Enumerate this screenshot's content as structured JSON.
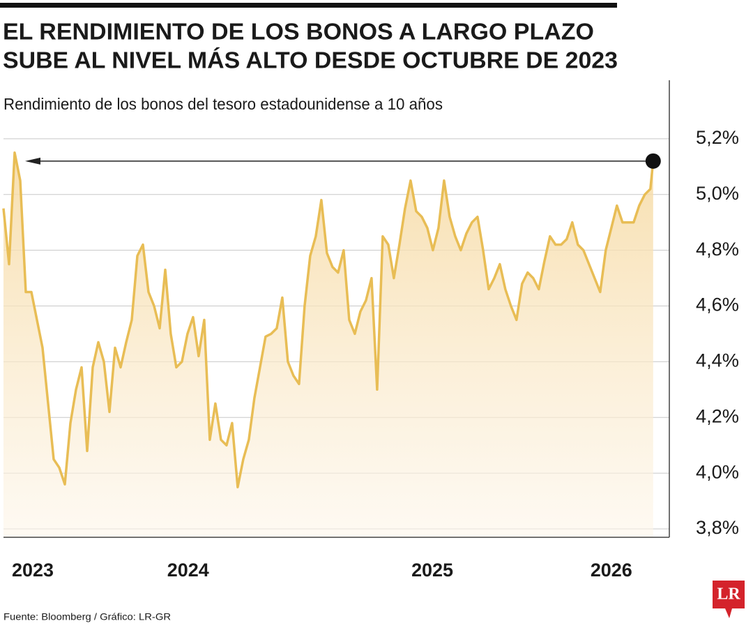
{
  "chart_data": {
    "type": "line",
    "title": [
      "EL RENDIMIENTO DE LOS BONOS A LARGO PLAZO",
      "SUBE AL NIVEL MÁS ALTO DESDE OCTUBRE DE 2023"
    ],
    "subtitle": "Rendimiento de los bonos del tesoro estadounidense a 10 años",
    "source": "Fuente: Bloomberg / Gráfico: LR-GR",
    "logo": "LR",
    "x": [
      0,
      1,
      2,
      3,
      4,
      5,
      6,
      7,
      8,
      9,
      10,
      11,
      12,
      13,
      14,
      15,
      16,
      17,
      18,
      19,
      20,
      21,
      22,
      23,
      24,
      25,
      26,
      27,
      28,
      29,
      30,
      31,
      32,
      33,
      34,
      35,
      36,
      37,
      38,
      39,
      40,
      41,
      42,
      43,
      44,
      45,
      46,
      47,
      48,
      49,
      50,
      51,
      52,
      53,
      54,
      55,
      56,
      57,
      58,
      59,
      60,
      61,
      62,
      63,
      64,
      65,
      66,
      67,
      68,
      69,
      70,
      71,
      72,
      73,
      74,
      75,
      76,
      77,
      78,
      79,
      80,
      81,
      82,
      83,
      84,
      85,
      86,
      87,
      88,
      89,
      90,
      91,
      92,
      93,
      94,
      95,
      96,
      97,
      98,
      99,
      100,
      101,
      102,
      103,
      104,
      105,
      106,
      107,
      108,
      109,
      110,
      111,
      112,
      113,
      114,
      115,
      116,
      116.5
    ],
    "series": [
      {
        "name": "Rendimiento",
        "color": "#e8bd55",
        "values": [
          4.95,
          4.75,
          5.15,
          5.05,
          4.65,
          4.65,
          4.55,
          4.45,
          4.25,
          4.05,
          4.02,
          3.96,
          4.18,
          4.3,
          4.38,
          4.08,
          4.38,
          4.47,
          4.4,
          4.22,
          4.45,
          4.38,
          4.47,
          4.55,
          4.78,
          4.82,
          4.65,
          4.6,
          4.52,
          4.73,
          4.5,
          4.38,
          4.4,
          4.5,
          4.56,
          4.42,
          4.55,
          4.12,
          4.25,
          4.12,
          4.1,
          4.18,
          3.95,
          4.05,
          4.12,
          4.27,
          4.38,
          4.49,
          4.5,
          4.52,
          4.63,
          4.4,
          4.35,
          4.32,
          4.6,
          4.78,
          4.85,
          4.98,
          4.79,
          4.74,
          4.72,
          4.8,
          4.55,
          4.5,
          4.58,
          4.62,
          4.7,
          4.3,
          4.85,
          4.82,
          4.7,
          4.82,
          4.95,
          5.05,
          4.94,
          4.92,
          4.88,
          4.8,
          4.88,
          5.05,
          4.92,
          4.85,
          4.8,
          4.86,
          4.9,
          4.92,
          4.8,
          4.66,
          4.7,
          4.75,
          4.66,
          4.6,
          4.55,
          4.68,
          4.72,
          4.7,
          4.66,
          4.76,
          4.85,
          4.82,
          4.82,
          4.84,
          4.9,
          4.82,
          4.8,
          4.75,
          4.7,
          4.65,
          4.8,
          4.88,
          4.96,
          4.9,
          4.9,
          4.9,
          4.96,
          5.0,
          5.02,
          5.12
        ]
      }
    ],
    "xlim": [
      0,
      119.4
    ],
    "xticks": [
      {
        "value": 5.25,
        "label": "2023"
      },
      {
        "value": 33.1,
        "label": "2024"
      },
      {
        "value": 76.9,
        "label": "2025"
      },
      {
        "value": 109,
        "label": "2026"
      }
    ],
    "ylim": [
      3.77,
      5.41
    ],
    "yticks": [
      {
        "value": 3.8,
        "label": "3,8%"
      },
      {
        "value": 4.0,
        "label": "4,0%"
      },
      {
        "value": 4.2,
        "label": "4,2%"
      },
      {
        "value": 4.4,
        "label": "4,4%"
      },
      {
        "value": 4.6,
        "label": "4,6%"
      },
      {
        "value": 4.8,
        "label": "4,8%"
      },
      {
        "value": 5.0,
        "label": "5,0%"
      },
      {
        "value": 5.2,
        "label": "5,2%"
      }
    ],
    "grid": true
  }
}
